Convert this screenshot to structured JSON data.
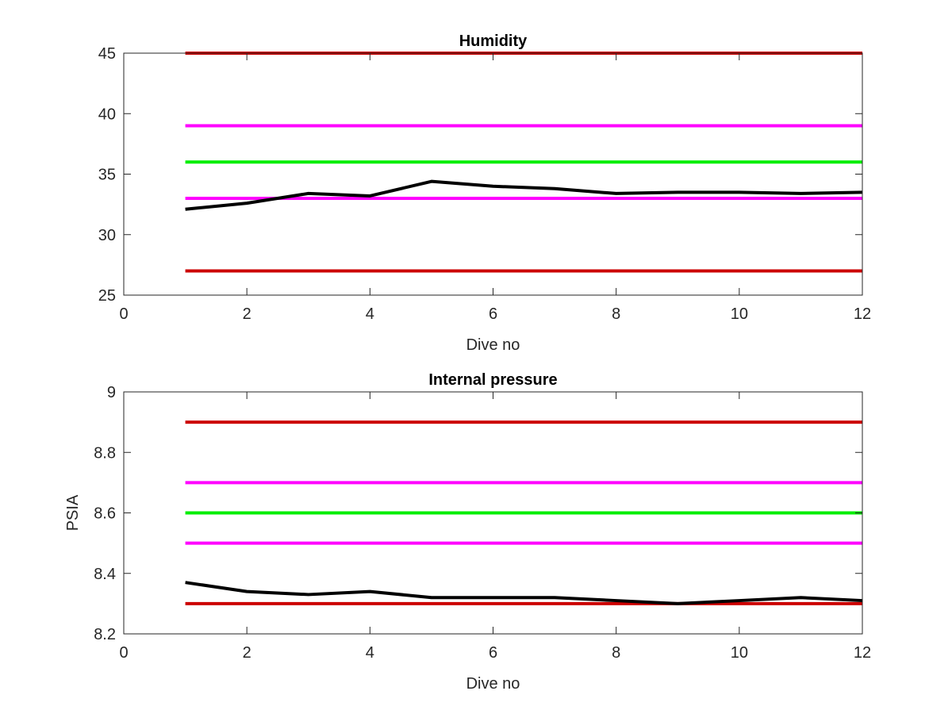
{
  "chart_data": [
    {
      "type": "line",
      "title": "Humidity",
      "xlabel": "Dive no",
      "ylabel": "",
      "xlim": [
        0,
        12
      ],
      "ylim": [
        25,
        45
      ],
      "xticks": [
        0,
        2,
        4,
        6,
        8,
        10,
        12
      ],
      "yticks": [
        25,
        30,
        35,
        40,
        45
      ],
      "grid": false,
      "series": [
        {
          "color": "#cc0000",
          "x": [
            1,
            12
          ],
          "values": [
            45,
            45
          ]
        },
        {
          "color": "#ff00ff",
          "x": [
            1,
            12
          ],
          "values": [
            39,
            39
          ]
        },
        {
          "color": "#00ee00",
          "x": [
            1,
            12
          ],
          "values": [
            36,
            36
          ]
        },
        {
          "color": "#ff00ff",
          "x": [
            1,
            12
          ],
          "values": [
            33,
            33
          ]
        },
        {
          "color": "#cc0000",
          "x": [
            1,
            12
          ],
          "values": [
            27,
            27
          ]
        },
        {
          "color": "#000000",
          "x": [
            1,
            2,
            3,
            4,
            5,
            6,
            7,
            8,
            9,
            10,
            11,
            12
          ],
          "values": [
            32.1,
            32.6,
            33.4,
            33.2,
            34.4,
            34.0,
            33.8,
            33.4,
            33.5,
            33.5,
            33.4,
            33.5
          ]
        }
      ]
    },
    {
      "type": "line",
      "title": "Internal pressure",
      "xlabel": "Dive no",
      "ylabel": "PSIA",
      "xlim": [
        0,
        12
      ],
      "ylim": [
        8.2,
        9
      ],
      "xticks": [
        0,
        2,
        4,
        6,
        8,
        10,
        12
      ],
      "yticks": [
        8.2,
        8.4,
        8.6,
        8.8,
        9
      ],
      "grid": false,
      "series": [
        {
          "color": "#cc0000",
          "x": [
            1,
            12
          ],
          "values": [
            8.9,
            8.9
          ]
        },
        {
          "color": "#ff00ff",
          "x": [
            1,
            12
          ],
          "values": [
            8.7,
            8.7
          ]
        },
        {
          "color": "#00ee00",
          "x": [
            1,
            12
          ],
          "values": [
            8.6,
            8.6
          ]
        },
        {
          "color": "#ff00ff",
          "x": [
            1,
            12
          ],
          "values": [
            8.5,
            8.5
          ]
        },
        {
          "color": "#cc0000",
          "x": [
            1,
            12
          ],
          "values": [
            8.3,
            8.3
          ]
        },
        {
          "color": "#000000",
          "x": [
            1,
            2,
            3,
            4,
            5,
            6,
            7,
            8,
            9,
            10,
            11,
            12
          ],
          "values": [
            8.37,
            8.34,
            8.33,
            8.34,
            8.32,
            8.32,
            8.32,
            8.31,
            8.3,
            8.31,
            8.32,
            8.31
          ]
        }
      ]
    }
  ]
}
